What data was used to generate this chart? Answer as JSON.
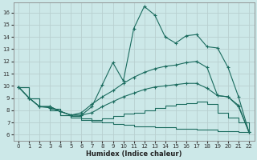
{
  "xlabel": "Humidex (Indice chaleur)",
  "bg_color": "#cce8e8",
  "grid_color": "#b8d0d0",
  "line_color": "#1a6b5e",
  "xlim": [
    -0.5,
    22.5
  ],
  "ylim": [
    5.5,
    16.8
  ],
  "xticks": [
    0,
    1,
    2,
    3,
    4,
    5,
    6,
    7,
    8,
    9,
    10,
    11,
    12,
    13,
    14,
    15,
    16,
    17,
    18,
    19,
    20,
    21,
    22
  ],
  "yticks": [
    6,
    7,
    8,
    9,
    10,
    11,
    12,
    13,
    14,
    15,
    16
  ],
  "curve1_x": [
    0,
    1,
    2,
    3,
    4,
    5,
    6,
    7,
    8,
    9,
    10,
    11,
    12,
    13,
    14,
    15,
    16,
    17,
    18,
    19,
    20,
    21,
    22
  ],
  "curve1_y": [
    9.9,
    9.0,
    8.3,
    8.3,
    7.9,
    7.6,
    7.6,
    8.3,
    10.1,
    11.9,
    10.4,
    14.7,
    16.5,
    15.8,
    14.0,
    13.5,
    14.1,
    14.2,
    13.2,
    13.1,
    11.5,
    9.1,
    6.2
  ],
  "curve2_x": [
    0,
    1,
    2,
    3,
    4,
    5,
    6,
    7,
    8,
    9,
    10,
    11,
    12,
    13,
    14,
    15,
    16,
    17,
    18,
    19,
    20,
    21,
    22
  ],
  "curve2_y": [
    9.9,
    9.0,
    8.3,
    8.3,
    7.9,
    7.6,
    7.8,
    8.5,
    9.1,
    9.6,
    10.2,
    10.7,
    11.1,
    11.4,
    11.6,
    11.7,
    11.9,
    12.0,
    11.5,
    9.2,
    9.1,
    8.3,
    6.2
  ],
  "curve3_x": [
    0,
    1,
    2,
    3,
    4,
    5,
    6,
    7,
    8,
    9,
    10,
    11,
    12,
    13,
    14,
    15,
    16,
    17,
    18,
    19,
    20,
    21,
    22
  ],
  "curve3_y": [
    9.9,
    9.0,
    8.3,
    8.2,
    7.9,
    7.6,
    7.6,
    7.8,
    8.3,
    8.7,
    9.1,
    9.4,
    9.7,
    9.9,
    10.0,
    10.1,
    10.2,
    10.2,
    9.8,
    9.2,
    9.1,
    8.4,
    6.2
  ],
  "curve4_x": [
    0,
    1,
    2,
    3,
    4,
    5,
    6,
    7,
    8,
    9,
    10,
    11,
    12,
    13,
    14,
    15,
    16,
    17,
    18,
    19,
    20,
    21,
    22
  ],
  "curve4_y": [
    9.9,
    9.0,
    8.3,
    8.1,
    7.6,
    7.5,
    7.3,
    7.2,
    7.3,
    7.5,
    7.7,
    7.8,
    8.0,
    8.2,
    8.4,
    8.5,
    8.6,
    8.7,
    8.5,
    7.8,
    7.4,
    7.0,
    6.2
  ],
  "curve5_x": [
    0,
    1,
    2,
    3,
    4,
    5,
    6,
    7,
    8,
    9,
    10,
    11,
    12,
    13,
    14,
    15,
    16,
    17,
    18,
    19,
    20,
    21,
    22
  ],
  "curve5_y": [
    9.9,
    9.0,
    8.3,
    8.0,
    7.6,
    7.4,
    7.2,
    7.1,
    7.0,
    6.9,
    6.8,
    6.7,
    6.7,
    6.6,
    6.6,
    6.5,
    6.5,
    6.4,
    6.4,
    6.3,
    6.3,
    6.2,
    6.2
  ]
}
